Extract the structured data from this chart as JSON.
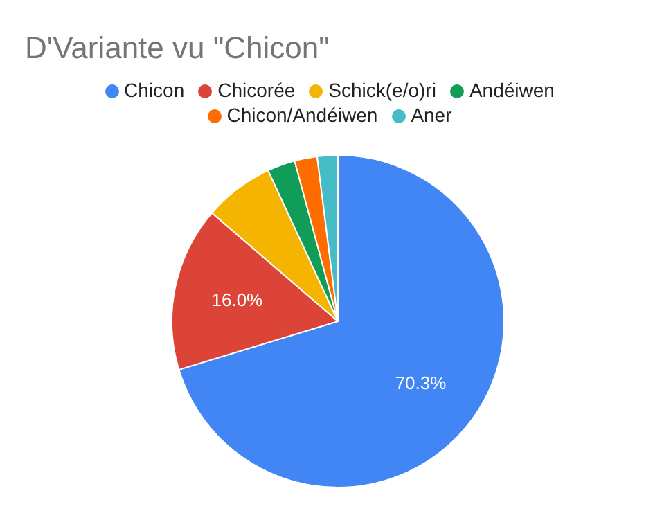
{
  "chart_data": {
    "type": "pie",
    "title": "D'Variante vu \"Chicon\"",
    "categories": [
      "Chicon",
      "Chicorée",
      "Schick(e/o)ri",
      "Andéiwen",
      "Chicon/Andéiwen",
      "Aner"
    ],
    "values": [
      70.3,
      16.0,
      6.8,
      2.7,
      2.2,
      2.0
    ],
    "colors": [
      "#4285f4",
      "#db4437",
      "#f4b400",
      "#0f9d58",
      "#ff6d01",
      "#46bdc6"
    ],
    "value_labels": [
      "70.3%",
      "16.0%",
      null,
      null,
      null,
      null
    ],
    "legend": "top"
  }
}
